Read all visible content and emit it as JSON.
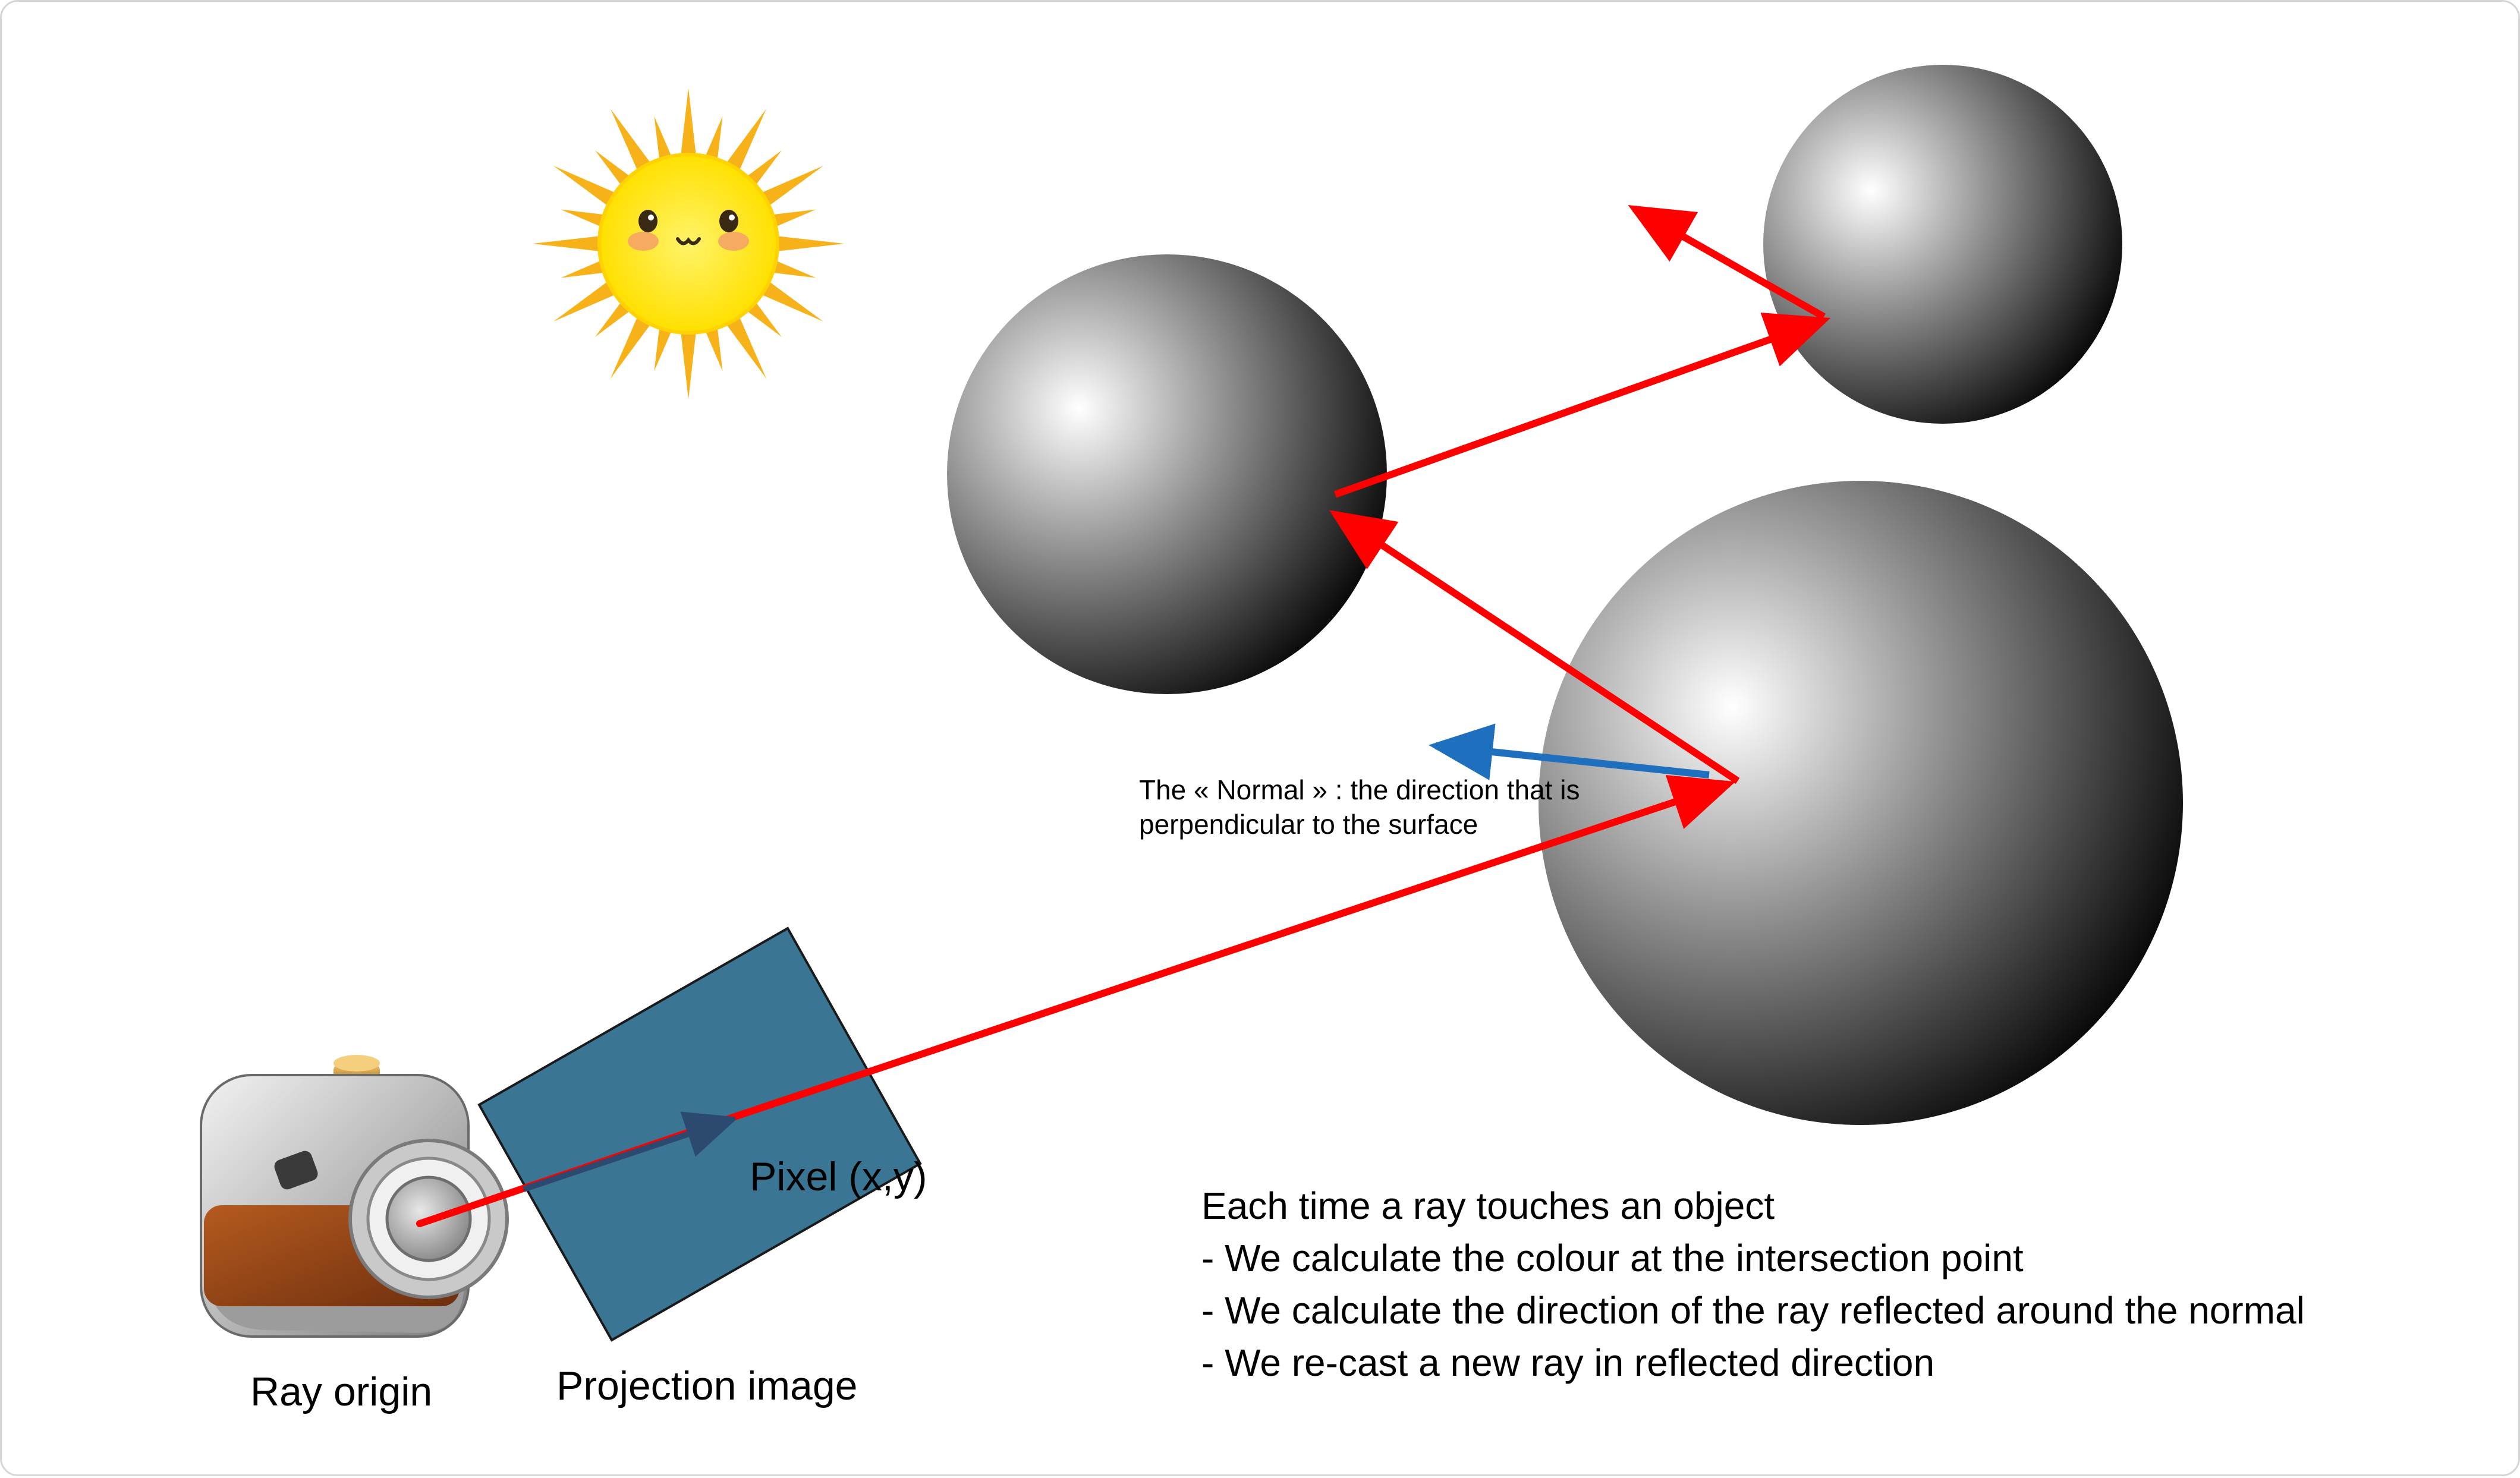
{
  "labels": {
    "ray_origin": "Ray origin",
    "projection_image": "Projection image",
    "pixel": "Pixel (x,y)",
    "normal_note": "The « Normal » : the direction that is perpendicular to the surface"
  },
  "explanation": {
    "heading": "Each time a ray touches an object",
    "steps": [
      "- We calculate the colour at the intersection point",
      "- We calculate the direction of the ray reflected around the normal",
      "- We re-cast a new ray in reflected direction"
    ]
  },
  "icons": {
    "light_source": "sun-icon",
    "camera": "camera-icon"
  },
  "colors": {
    "ray": "#ff0000",
    "normal": "#1f6fbf",
    "projection_plane": "#3a7594",
    "camera_ray": "#2c4a70"
  }
}
